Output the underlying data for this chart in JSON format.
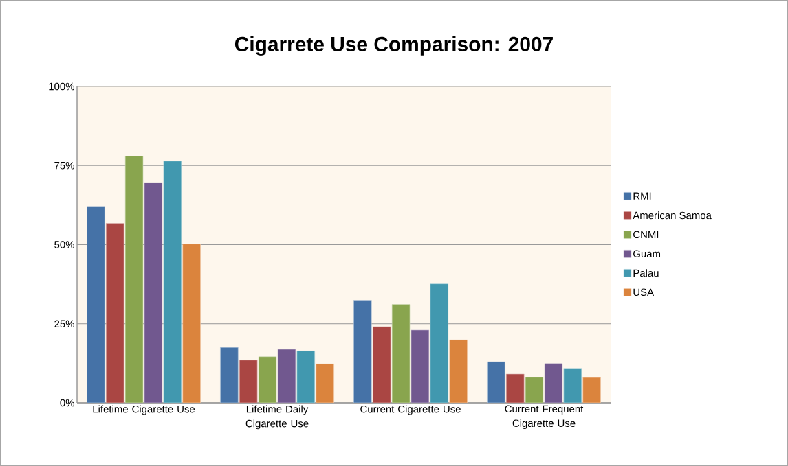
{
  "chart_data": {
    "type": "bar",
    "title": "Cigarrete Use Comparison:  2007",
    "categories": [
      "Lifetime Cigarette Use",
      "Lifetime Daily Cigarette Use",
      "Current Cigarette Use",
      "Current Frequent Cigarette Use"
    ],
    "series": [
      {
        "name": "RMI",
        "color": "#4572a7",
        "values": [
          62.1,
          17.5,
          32.4,
          13.0
        ]
      },
      {
        "name": "American Samoa",
        "color": "#aa4643",
        "values": [
          56.7,
          13.5,
          24.1,
          9.1
        ]
      },
      {
        "name": "CNMI",
        "color": "#89a54e",
        "values": [
          78.0,
          14.6,
          31.1,
          8.1
        ]
      },
      {
        "name": "Guam",
        "color": "#71588f",
        "values": [
          69.6,
          16.9,
          23.0,
          12.4
        ]
      },
      {
        "name": "Palau",
        "color": "#4198af",
        "values": [
          76.4,
          16.4,
          37.6,
          10.9
        ]
      },
      {
        "name": "USA",
        "color": "#db843d",
        "values": [
          50.2,
          12.3,
          19.9,
          8.0
        ]
      }
    ],
    "ylim": [
      0,
      100
    ],
    "yticks": [
      {
        "value": 0,
        "label": "0%"
      },
      {
        "value": 25,
        "label": "25%"
      },
      {
        "value": 50,
        "label": "50%"
      },
      {
        "value": 75,
        "label": "75%"
      },
      {
        "value": 100,
        "label": "100%"
      }
    ],
    "grid": "y",
    "legend": "right"
  }
}
